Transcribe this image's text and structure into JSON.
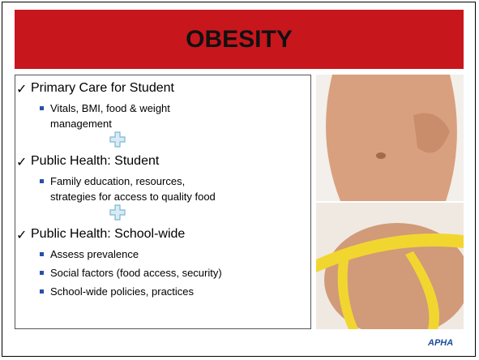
{
  "slide": {
    "title": "OBESITY",
    "sections": [
      {
        "heading": "Primary Care for Student",
        "bullets": [
          [
            "Vitals, BMI, food & weight",
            "management"
          ]
        ]
      },
      {
        "heading": "Public Health: Student",
        "bullets": [
          [
            "Family education, resources,",
            "strategies for access to quality food"
          ]
        ]
      },
      {
        "heading": "Public Health: School-wide",
        "bullets": [
          [
            "Assess prevalence"
          ],
          [
            "Social factors (food access, security)"
          ],
          [
            "School-wide policies, practices"
          ]
        ]
      }
    ],
    "logo": "APHA"
  }
}
